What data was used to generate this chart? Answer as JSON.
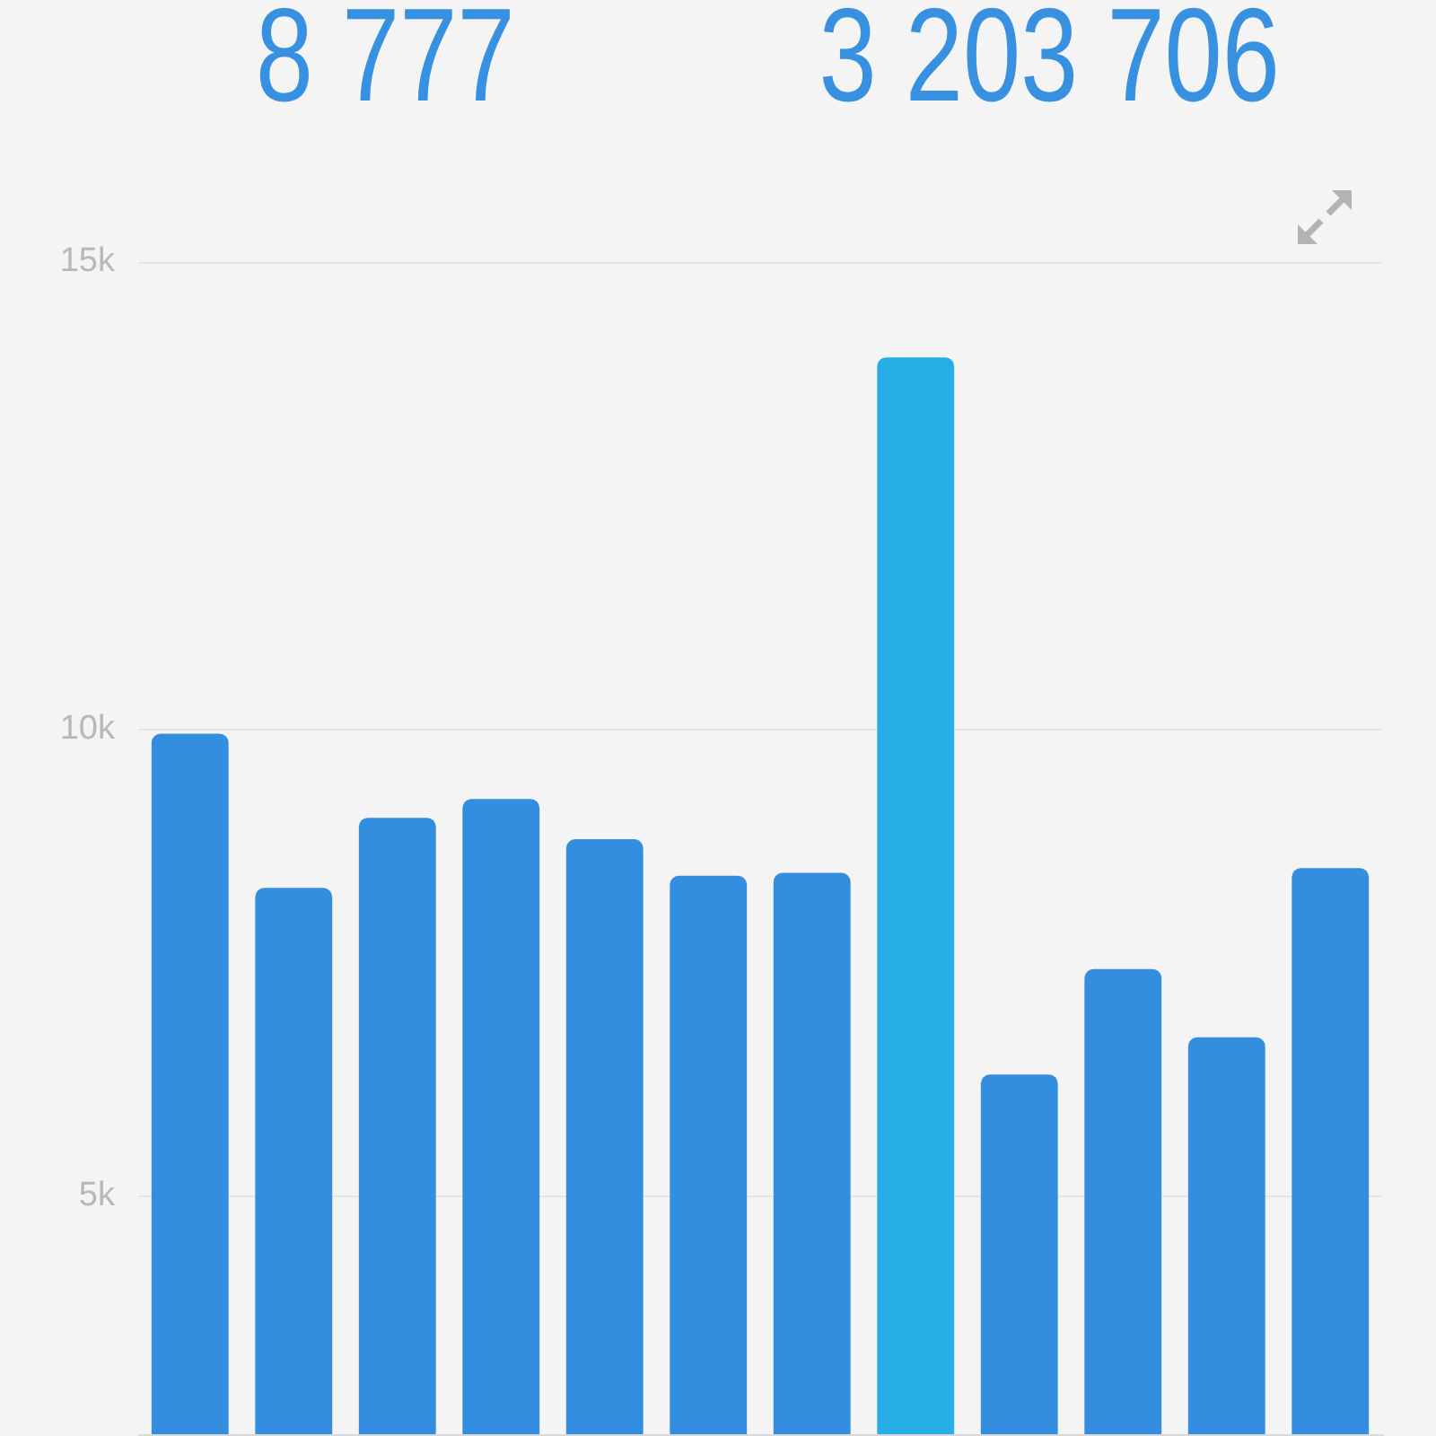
{
  "chart_data": {
    "type": "bar",
    "annotations": [
      "8 777",
      "3 203 706"
    ],
    "categories": [
      null,
      null,
      null,
      null,
      null,
      null,
      null,
      null,
      null,
      null,
      null,
      null
    ],
    "values": [
      9950,
      8300,
      9050,
      9250,
      8820,
      8430,
      8460,
      13980,
      6300,
      7430,
      6700,
      8510
    ],
    "colors": [
      "#338ee0",
      "#338ee0",
      "#338ee0",
      "#338ee0",
      "#338ee0",
      "#338ee0",
      "#338ee0",
      "#26aee6",
      "#338ee0",
      "#338ee0",
      "#338ee0",
      "#338ee0"
    ],
    "ylim": [
      2450,
      15000
    ],
    "yticks": [
      {
        "value": 5000,
        "label": "5k"
      },
      {
        "value": 10000,
        "label": "10k"
      },
      {
        "value": 15000,
        "label": "15k"
      }
    ],
    "grid": "y",
    "tick_labels": "y"
  }
}
